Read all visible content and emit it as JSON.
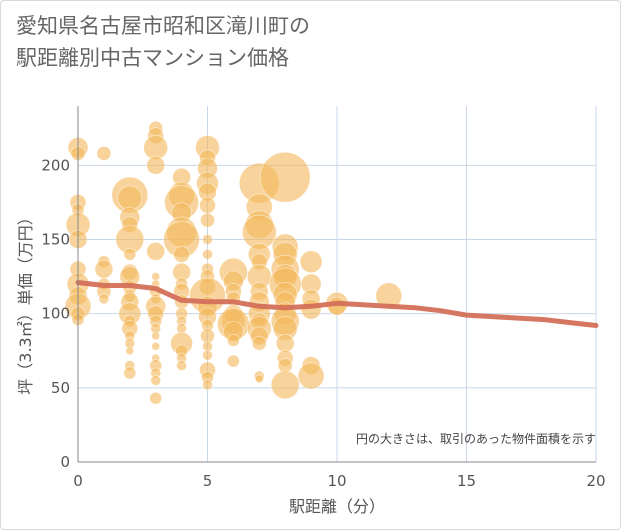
{
  "title_line1": "愛知県名古屋市昭和区滝川町の",
  "title_line2": "駅距離別中古マンション価格",
  "note": "円の大きさは、取引のあった物件面積を示す",
  "colors": {
    "bubble": "#f3b85a",
    "line": "#d4705a",
    "grid": "#c9d7e8",
    "axis": "#888888",
    "text": "#555555"
  },
  "chart_data": {
    "type": "scatter",
    "xlabel": "駅距離（分）",
    "ylabel": "坪（3.3㎡）単価（万円）",
    "xlim": [
      0,
      20
    ],
    "ylim": [
      0,
      240
    ],
    "xticks": [
      0,
      5,
      10,
      15,
      20
    ],
    "yticks": [
      0,
      50,
      100,
      150,
      200
    ],
    "grid": true,
    "points": [
      {
        "x": 0,
        "y": 212,
        "s": 10
      },
      {
        "x": 0,
        "y": 208,
        "s": 7
      },
      {
        "x": 0,
        "y": 175,
        "s": 8
      },
      {
        "x": 0,
        "y": 170,
        "s": 6
      },
      {
        "x": 0,
        "y": 160,
        "s": 12
      },
      {
        "x": 0,
        "y": 150,
        "s": 9
      },
      {
        "x": 0,
        "y": 130,
        "s": 8
      },
      {
        "x": 0,
        "y": 120,
        "s": 11
      },
      {
        "x": 0,
        "y": 112,
        "s": 9
      },
      {
        "x": 0,
        "y": 105,
        "s": 13
      },
      {
        "x": 0,
        "y": 100,
        "s": 7
      },
      {
        "x": 0,
        "y": 96,
        "s": 6
      },
      {
        "x": 1,
        "y": 208,
        "s": 7
      },
      {
        "x": 1,
        "y": 135,
        "s": 6
      },
      {
        "x": 1,
        "y": 130,
        "s": 9
      },
      {
        "x": 1,
        "y": 120,
        "s": 6
      },
      {
        "x": 1,
        "y": 115,
        "s": 7
      },
      {
        "x": 1,
        "y": 110,
        "s": 5
      },
      {
        "x": 2,
        "y": 180,
        "s": 18
      },
      {
        "x": 2,
        "y": 178,
        "s": 12
      },
      {
        "x": 2,
        "y": 165,
        "s": 10
      },
      {
        "x": 2,
        "y": 160,
        "s": 8
      },
      {
        "x": 2,
        "y": 150,
        "s": 14
      },
      {
        "x": 2,
        "y": 140,
        "s": 6
      },
      {
        "x": 2,
        "y": 128,
        "s": 8
      },
      {
        "x": 2,
        "y": 125,
        "s": 10
      },
      {
        "x": 2,
        "y": 118,
        "s": 7
      },
      {
        "x": 2,
        "y": 112,
        "s": 6
      },
      {
        "x": 2,
        "y": 108,
        "s": 9
      },
      {
        "x": 2,
        "y": 100,
        "s": 11
      },
      {
        "x": 2,
        "y": 95,
        "s": 6
      },
      {
        "x": 2,
        "y": 90,
        "s": 8
      },
      {
        "x": 2,
        "y": 85,
        "s": 5
      },
      {
        "x": 2,
        "y": 80,
        "s": 5
      },
      {
        "x": 2,
        "y": 75,
        "s": 4
      },
      {
        "x": 2,
        "y": 65,
        "s": 5
      },
      {
        "x": 2,
        "y": 60,
        "s": 6
      },
      {
        "x": 3,
        "y": 225,
        "s": 7
      },
      {
        "x": 3,
        "y": 220,
        "s": 8
      },
      {
        "x": 3,
        "y": 212,
        "s": 12
      },
      {
        "x": 3,
        "y": 200,
        "s": 9
      },
      {
        "x": 3,
        "y": 142,
        "s": 9
      },
      {
        "x": 3,
        "y": 125,
        "s": 4
      },
      {
        "x": 3,
        "y": 120,
        "s": 4
      },
      {
        "x": 3,
        "y": 115,
        "s": 6
      },
      {
        "x": 3,
        "y": 110,
        "s": 5
      },
      {
        "x": 3,
        "y": 105,
        "s": 10
      },
      {
        "x": 3,
        "y": 100,
        "s": 8
      },
      {
        "x": 3,
        "y": 95,
        "s": 6
      },
      {
        "x": 3,
        "y": 90,
        "s": 5
      },
      {
        "x": 3,
        "y": 85,
        "s": 4
      },
      {
        "x": 3,
        "y": 78,
        "s": 4
      },
      {
        "x": 3,
        "y": 70,
        "s": 4
      },
      {
        "x": 3,
        "y": 65,
        "s": 6
      },
      {
        "x": 3,
        "y": 60,
        "s": 5
      },
      {
        "x": 3,
        "y": 55,
        "s": 5
      },
      {
        "x": 3,
        "y": 43,
        "s": 6
      },
      {
        "x": 4,
        "y": 192,
        "s": 9
      },
      {
        "x": 4,
        "y": 180,
        "s": 13
      },
      {
        "x": 4,
        "y": 175,
        "s": 17
      },
      {
        "x": 4,
        "y": 168,
        "s": 10
      },
      {
        "x": 4,
        "y": 155,
        "s": 15
      },
      {
        "x": 4,
        "y": 150,
        "s": 18
      },
      {
        "x": 4,
        "y": 140,
        "s": 8
      },
      {
        "x": 4,
        "y": 128,
        "s": 9
      },
      {
        "x": 4,
        "y": 120,
        "s": 6
      },
      {
        "x": 4,
        "y": 115,
        "s": 8
      },
      {
        "x": 4,
        "y": 108,
        "s": 7
      },
      {
        "x": 4,
        "y": 100,
        "s": 6
      },
      {
        "x": 4,
        "y": 95,
        "s": 5
      },
      {
        "x": 4,
        "y": 90,
        "s": 5
      },
      {
        "x": 4,
        "y": 80,
        "s": 11
      },
      {
        "x": 4,
        "y": 75,
        "s": 6
      },
      {
        "x": 4,
        "y": 70,
        "s": 5
      },
      {
        "x": 4,
        "y": 65,
        "s": 5
      },
      {
        "x": 5,
        "y": 212,
        "s": 12
      },
      {
        "x": 5,
        "y": 205,
        "s": 8
      },
      {
        "x": 5,
        "y": 198,
        "s": 10
      },
      {
        "x": 5,
        "y": 188,
        "s": 11
      },
      {
        "x": 5,
        "y": 182,
        "s": 9
      },
      {
        "x": 5,
        "y": 173,
        "s": 8
      },
      {
        "x": 5,
        "y": 163,
        "s": 7
      },
      {
        "x": 5,
        "y": 150,
        "s": 5
      },
      {
        "x": 5,
        "y": 140,
        "s": 5
      },
      {
        "x": 5,
        "y": 130,
        "s": 6
      },
      {
        "x": 5,
        "y": 125,
        "s": 7
      },
      {
        "x": 5,
        "y": 118,
        "s": 8
      },
      {
        "x": 5,
        "y": 112,
        "s": 18
      },
      {
        "x": 5,
        "y": 105,
        "s": 10
      },
      {
        "x": 5,
        "y": 98,
        "s": 9
      },
      {
        "x": 5,
        "y": 92,
        "s": 6
      },
      {
        "x": 5,
        "y": 85,
        "s": 7
      },
      {
        "x": 5,
        "y": 78,
        "s": 5
      },
      {
        "x": 5,
        "y": 72,
        "s": 5
      },
      {
        "x": 5,
        "y": 62,
        "s": 8
      },
      {
        "x": 5,
        "y": 57,
        "s": 6
      },
      {
        "x": 5,
        "y": 52,
        "s": 5
      },
      {
        "x": 6,
        "y": 128,
        "s": 14
      },
      {
        "x": 6,
        "y": 122,
        "s": 10
      },
      {
        "x": 6,
        "y": 115,
        "s": 8
      },
      {
        "x": 6,
        "y": 110,
        "s": 7
      },
      {
        "x": 6,
        "y": 100,
        "s": 9
      },
      {
        "x": 6,
        "y": 95,
        "s": 12
      },
      {
        "x": 6,
        "y": 93,
        "s": 16
      },
      {
        "x": 6,
        "y": 88,
        "s": 10
      },
      {
        "x": 6,
        "y": 82,
        "s": 6
      },
      {
        "x": 6,
        "y": 68,
        "s": 6
      },
      {
        "x": 7,
        "y": 188,
        "s": 20
      },
      {
        "x": 7,
        "y": 172,
        "s": 13
      },
      {
        "x": 7,
        "y": 160,
        "s": 14
      },
      {
        "x": 7,
        "y": 155,
        "s": 17
      },
      {
        "x": 7,
        "y": 140,
        "s": 11
      },
      {
        "x": 7,
        "y": 135,
        "s": 8
      },
      {
        "x": 7,
        "y": 125,
        "s": 12
      },
      {
        "x": 7,
        "y": 115,
        "s": 9
      },
      {
        "x": 7,
        "y": 108,
        "s": 10
      },
      {
        "x": 7,
        "y": 100,
        "s": 11
      },
      {
        "x": 7,
        "y": 95,
        "s": 8
      },
      {
        "x": 7,
        "y": 90,
        "s": 12
      },
      {
        "x": 7,
        "y": 85,
        "s": 9
      },
      {
        "x": 7,
        "y": 80,
        "s": 7
      },
      {
        "x": 7,
        "y": 58,
        "s": 5
      },
      {
        "x": 7,
        "y": 56,
        "s": 4
      },
      {
        "x": 8,
        "y": 192,
        "s": 25
      },
      {
        "x": 8,
        "y": 145,
        "s": 13
      },
      {
        "x": 8,
        "y": 140,
        "s": 12
      },
      {
        "x": 8,
        "y": 130,
        "s": 14
      },
      {
        "x": 8,
        "y": 125,
        "s": 12
      },
      {
        "x": 8,
        "y": 120,
        "s": 16
      },
      {
        "x": 8,
        "y": 113,
        "s": 12
      },
      {
        "x": 8,
        "y": 108,
        "s": 10
      },
      {
        "x": 8,
        "y": 100,
        "s": 11
      },
      {
        "x": 8,
        "y": 95,
        "s": 14
      },
      {
        "x": 8,
        "y": 90,
        "s": 12
      },
      {
        "x": 8,
        "y": 80,
        "s": 9
      },
      {
        "x": 8,
        "y": 70,
        "s": 8
      },
      {
        "x": 8,
        "y": 65,
        "s": 7
      },
      {
        "x": 8,
        "y": 52,
        "s": 14
      },
      {
        "x": 9,
        "y": 135,
        "s": 11
      },
      {
        "x": 9,
        "y": 120,
        "s": 10
      },
      {
        "x": 9,
        "y": 110,
        "s": 9
      },
      {
        "x": 9,
        "y": 103,
        "s": 10
      },
      {
        "x": 9,
        "y": 65,
        "s": 9
      },
      {
        "x": 9,
        "y": 58,
        "s": 13
      },
      {
        "x": 10,
        "y": 107,
        "s": 11
      },
      {
        "x": 10,
        "y": 105,
        "s": 9
      },
      {
        "x": 12,
        "y": 112,
        "s": 13
      }
    ],
    "trend": {
      "x": [
        0,
        1,
        2,
        3,
        4,
        5,
        6,
        7,
        8,
        9,
        10,
        11,
        12,
        13,
        14,
        15,
        16,
        17,
        18,
        19,
        20
      ],
      "y": [
        121,
        119,
        119,
        117,
        109,
        108,
        108,
        105,
        104,
        105,
        107,
        106,
        105,
        104,
        102,
        99,
        98,
        97,
        96,
        94,
        92
      ]
    }
  }
}
